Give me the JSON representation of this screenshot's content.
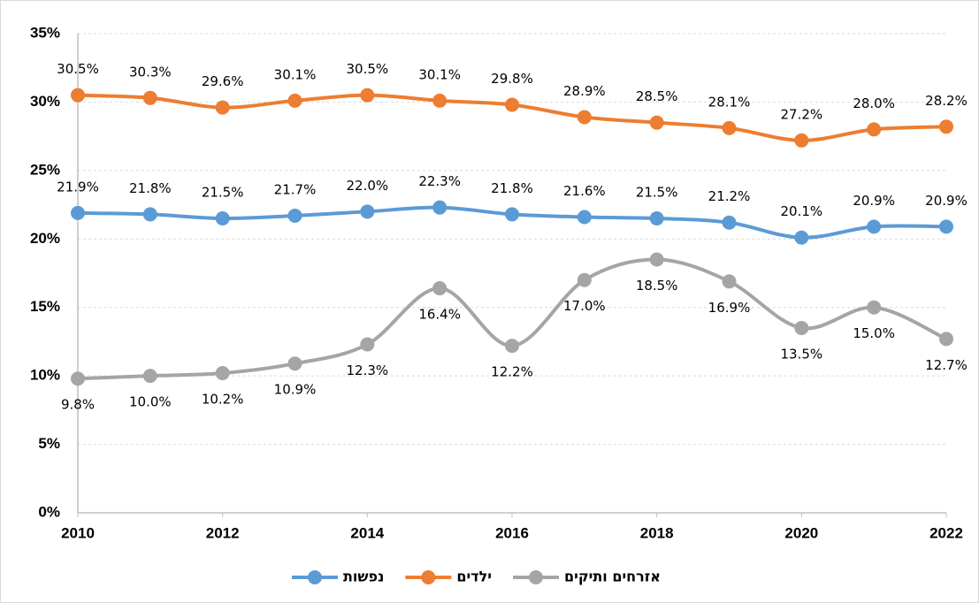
{
  "chart_data": {
    "type": "line",
    "x": [
      2010,
      2011,
      2012,
      2013,
      2014,
      2015,
      2016,
      2017,
      2018,
      2019,
      2020,
      2021,
      2022
    ],
    "xlim": [
      2010,
      2022
    ],
    "xticks": [
      2010,
      2012,
      2014,
      2016,
      2018,
      2020,
      2022
    ],
    "ylim": [
      0,
      35
    ],
    "yticks": [
      {
        "value": 0,
        "label": "0%"
      },
      {
        "value": 5,
        "label": "5%"
      },
      {
        "value": 10,
        "label": "10%"
      },
      {
        "value": 15,
        "label": "15%"
      },
      {
        "value": 20,
        "label": "20%"
      },
      {
        "value": 25,
        "label": "25%"
      },
      {
        "value": 30,
        "label": "30%"
      },
      {
        "value": 35,
        "label": "35%"
      }
    ],
    "grid": true,
    "legend": "bottom",
    "smooth": true,
    "series": [
      {
        "name": "נפשות",
        "color": "#5b9bd5",
        "values": [
          21.9,
          21.8,
          21.5,
          21.7,
          22.0,
          22.3,
          21.8,
          21.6,
          21.5,
          21.2,
          20.1,
          20.9,
          20.9
        ],
        "value_labels": [
          "21.9%",
          "21.8%",
          "21.5%",
          "21.7%",
          "22.0%",
          "22.3%",
          "21.8%",
          "21.6%",
          "21.5%",
          "21.2%",
          "20.1%",
          "20.9%",
          "20.9%"
        ]
      },
      {
        "name": "ילדים",
        "color": "#ed7d31",
        "values": [
          30.5,
          30.3,
          29.6,
          30.1,
          30.5,
          30.1,
          29.8,
          28.9,
          28.5,
          28.1,
          27.2,
          28.0,
          28.2
        ],
        "value_labels": [
          "30.5%",
          "30.3%",
          "29.6%",
          "30.1%",
          "30.5%",
          "30.1%",
          "29.8%",
          "28.9%",
          "28.5%",
          "28.1%",
          "27.2%",
          "28.0%",
          "28.2%"
        ]
      },
      {
        "name": "אזרחים ותיקים",
        "color": "#a5a5a5",
        "values": [
          9.8,
          10.0,
          10.2,
          10.9,
          12.3,
          16.4,
          12.2,
          17.0,
          18.5,
          16.9,
          13.5,
          15.0,
          12.7
        ],
        "value_labels": [
          "9.8%",
          "10.0%",
          "10.2%",
          "10.9%",
          "12.3%",
          "16.4%",
          "12.2%",
          "17.0%",
          "18.5%",
          "16.9%",
          "13.5%",
          "15.0%",
          "12.7%"
        ]
      }
    ]
  }
}
